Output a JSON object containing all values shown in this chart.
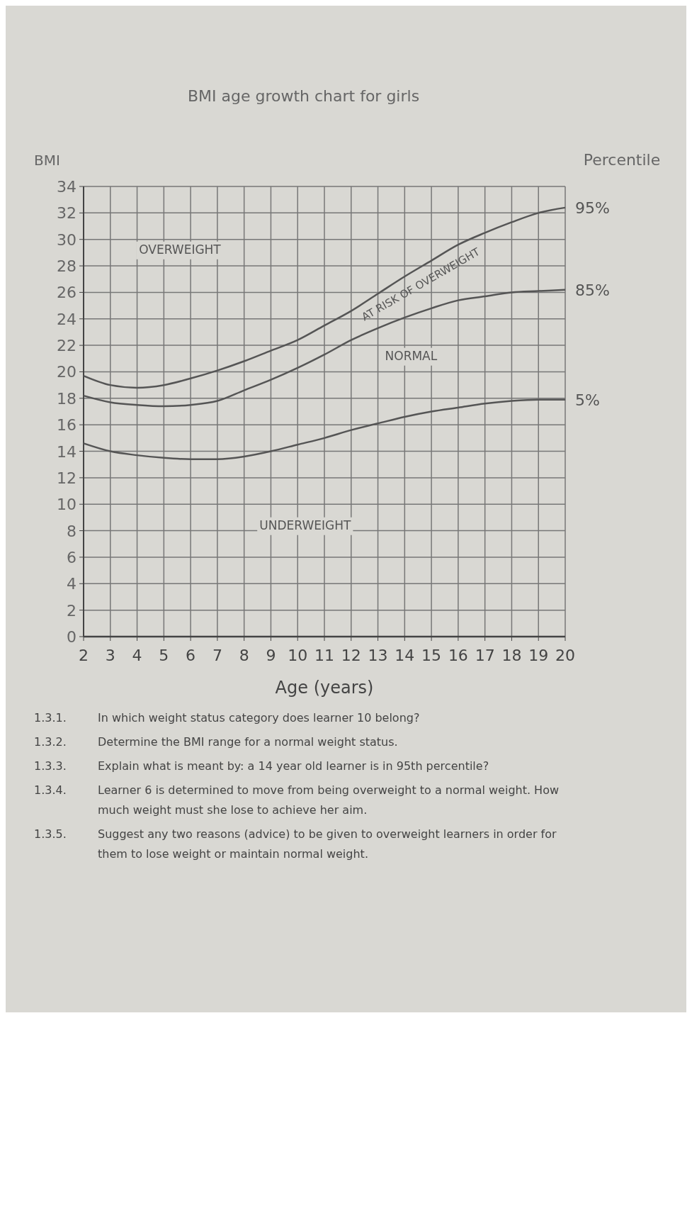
{
  "chart_data": {
    "type": "line",
    "title": "BMI age growth chart for girls",
    "xlabel": "Age (years)",
    "ylabel": "BMI",
    "legend_title": "Percentile",
    "x": [
      2,
      3,
      4,
      5,
      6,
      7,
      8,
      9,
      10,
      11,
      12,
      13,
      14,
      15,
      16,
      17,
      18,
      19,
      20
    ],
    "series": [
      {
        "name": "95%",
        "color": "#555555",
        "values": [
          19.7,
          19.0,
          18.8,
          19.0,
          19.5,
          20.1,
          20.8,
          21.6,
          22.4,
          23.5,
          24.6,
          25.9,
          27.2,
          28.4,
          29.6,
          30.5,
          31.3,
          32.0,
          32.4
        ]
      },
      {
        "name": "85%",
        "color": "#555555",
        "values": [
          18.2,
          17.7,
          17.5,
          17.4,
          17.5,
          17.8,
          18.6,
          19.4,
          20.3,
          21.3,
          22.4,
          23.3,
          24.1,
          24.8,
          25.4,
          25.7,
          26.0,
          26.1,
          26.2
        ]
      },
      {
        "name": "5%",
        "color": "#555555",
        "values": [
          14.6,
          14.0,
          13.7,
          13.5,
          13.4,
          13.4,
          13.6,
          14.0,
          14.5,
          15.0,
          15.6,
          16.1,
          16.6,
          17.0,
          17.3,
          17.6,
          17.8,
          17.9,
          17.9
        ]
      }
    ],
    "xlim": [
      2,
      20
    ],
    "xticks": [
      2,
      3,
      4,
      5,
      6,
      7,
      8,
      9,
      10,
      11,
      12,
      13,
      14,
      15,
      16,
      17,
      18,
      19,
      20
    ],
    "ylim": [
      0,
      34
    ],
    "yticks": [
      0,
      2,
      4,
      6,
      8,
      10,
      12,
      14,
      16,
      18,
      20,
      22,
      24,
      26,
      28,
      30,
      32,
      34
    ],
    "grid": true,
    "marker": "none",
    "line_style": "solid",
    "annotations": [
      "OVERWEIGHT",
      "AT RISK OF OVERWEIGHT",
      "NORMAL",
      "UNDERWEIGHT",
      "1.3.1. In which weight status category does learner 10 belong?",
      "1.3.2. Determine the BMI range for a normal weight status.",
      "1.3.3. Explain what is meant by: a 14 year old learner is in 95th percentile?",
      "1.3.4. Learner 6 is determined to move from being overweight to a normal weight. How much weight must she lose to achieve her aim.",
      "1.3.5. Suggest any two reasons (advice) to be given to overweight learners in order for them to lose weight or maintain normal weight."
    ]
  }
}
